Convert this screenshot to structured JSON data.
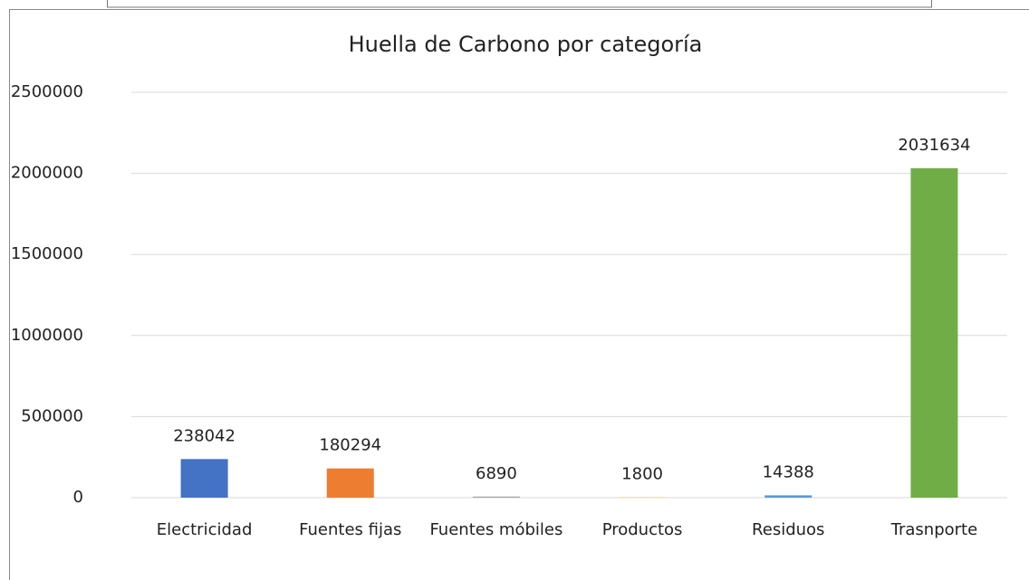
{
  "chart_data": {
    "type": "bar",
    "title": "Huella de Carbono por categoría",
    "categories": [
      "Electricidad",
      "Fuentes fijas",
      "Fuentes móbiles",
      "Productos",
      "Residuos",
      "Trasnporte"
    ],
    "values": [
      238042,
      180294,
      6890,
      1800,
      14388,
      2031634
    ],
    "colors": [
      "#4472c4",
      "#ed7d31",
      "#a5a5a5",
      "#ffc000",
      "#5b9bd5",
      "#70ad47"
    ],
    "ylim": [
      0,
      2500000
    ],
    "yticks": [
      0,
      500000,
      1000000,
      1500000,
      2000000,
      2500000
    ],
    "grid": true
  }
}
